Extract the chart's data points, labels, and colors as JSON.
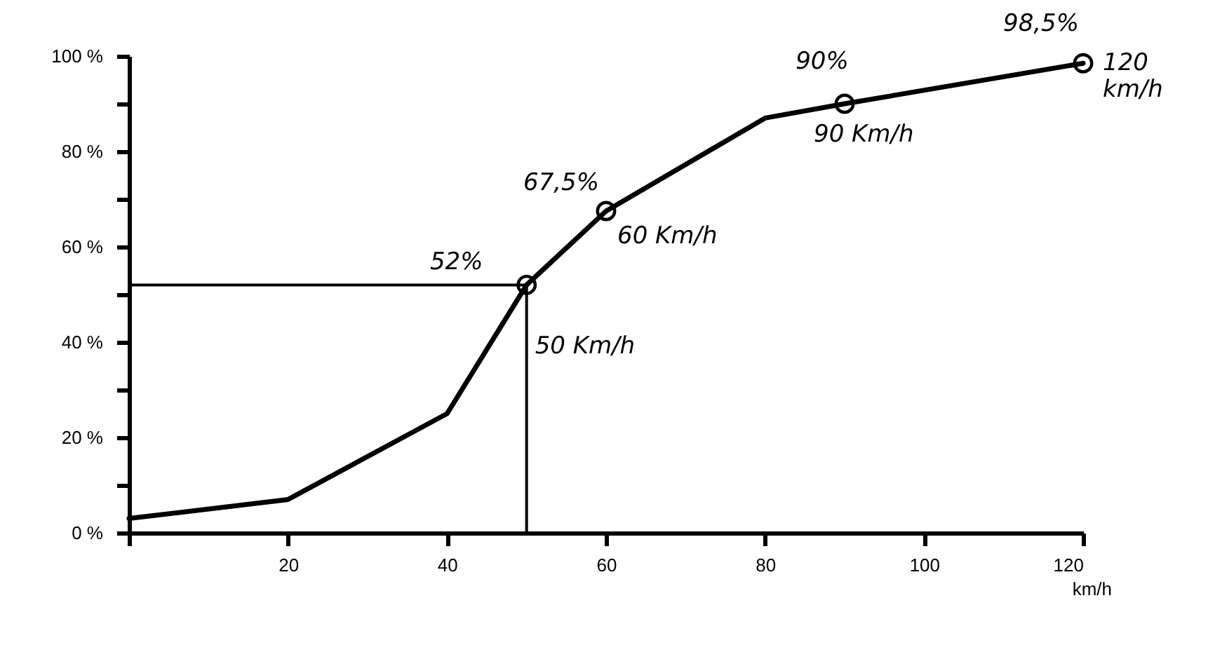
{
  "chart_data": {
    "type": "line",
    "xlabel": "km/h",
    "x": [
      0,
      20,
      40,
      50,
      60,
      80,
      90,
      120
    ],
    "series": [
      {
        "color": "#000000",
        "marker": "none",
        "values": [
          3,
          7,
          25,
          52,
          67.5,
          87,
          90,
          98.5
        ]
      },
      {
        "type": "scatter",
        "color": "#000000",
        "marker": "circle",
        "x": [
          50,
          60,
          90,
          120
        ],
        "values": [
          52,
          67.5,
          90,
          98.5
        ]
      }
    ],
    "xlim": [
      0,
      120
    ],
    "xticks": [
      {
        "value": 0,
        "label": null
      },
      20,
      40,
      60,
      80,
      100,
      120
    ],
    "ylim": [
      0,
      100
    ],
    "yticks": [
      {
        "value": 0,
        "label": "0 %"
      },
      {
        "value": 10,
        "label": null
      },
      {
        "value": 20,
        "label": "20 %"
      },
      {
        "value": 30,
        "label": null
      },
      {
        "value": 40,
        "label": "40 %"
      },
      {
        "value": 50,
        "label": null
      },
      {
        "value": 60,
        "label": "60 %"
      },
      {
        "value": 70,
        "label": null
      },
      {
        "value": 80,
        "label": "80 %"
      },
      {
        "value": 90,
        "label": null
      },
      {
        "value": 100,
        "label": "100 %"
      }
    ],
    "ref_lines": [
      {
        "axis": "y",
        "value": 52,
        "color": "#000000"
      },
      {
        "axis": "x",
        "value": 50,
        "color": "#000000"
      }
    ],
    "annotations": [
      {
        "text": "52%",
        "x": 50,
        "y": 52
      },
      {
        "text": "50 Km/h",
        "x": 50,
        "y": 52
      },
      {
        "text": "67,5%",
        "x": 60,
        "y": 67.5
      },
      {
        "text": "60 Km/h",
        "x": 60,
        "y": 67.5
      },
      {
        "text": "90%",
        "x": 90,
        "y": 90
      },
      {
        "text": "90 Km/h",
        "x": 90,
        "y": 90
      },
      {
        "text": "98,5%",
        "x": 120,
        "y": 98.5
      },
      {
        "text": "120 km/h",
        "x": 120,
        "y": 98.5
      }
    ],
    "grid": false
  }
}
